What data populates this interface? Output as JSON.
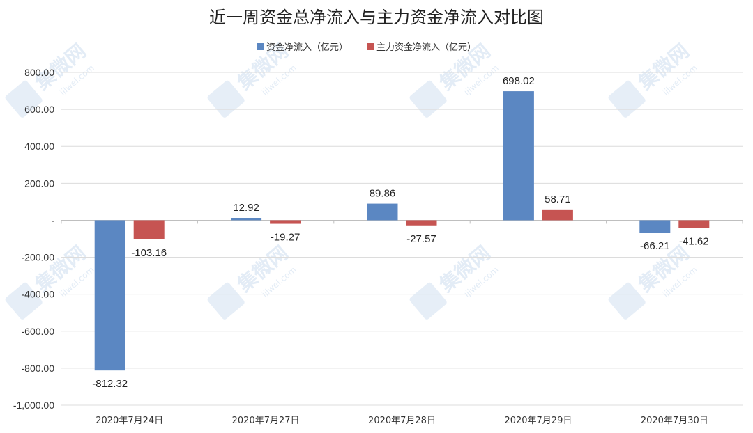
{
  "watermark": {
    "text": "集微网",
    "url": "ijiwei.com"
  },
  "chart_data": {
    "type": "bar",
    "title": "近一周资金总净流入与主力资金净流入对比图",
    "categories": [
      "2020年7月24日",
      "2020年7月27日",
      "2020年7月28日",
      "2020年7月29日",
      "2020年7月30日"
    ],
    "series": [
      {
        "name": "资金净流入（亿元）",
        "color": "#5b87c2",
        "values": [
          -812.32,
          12.92,
          89.86,
          698.02,
          -66.21
        ],
        "labels": [
          "-812.32",
          "12.92",
          "89.86",
          "698.02",
          "-66.21"
        ]
      },
      {
        "name": "主力资金净流入（亿元）",
        "color": "#c65452",
        "values": [
          -103.16,
          -19.27,
          -27.57,
          58.71,
          -41.62
        ],
        "labels": [
          "-103.16",
          "-19.27",
          "-27.57",
          "58.71",
          "-41.62"
        ]
      }
    ],
    "yticks": [
      800,
      600,
      400,
      200,
      0,
      -200,
      -400,
      -600,
      -800,
      -1000
    ],
    "ytick_labels": [
      "800.00",
      "600.00",
      "400.00",
      "200.00",
      "-",
      "-200.00",
      "-400.00",
      "-600.00",
      "-800.00",
      "-1,000.00"
    ],
    "ylim": [
      -1000,
      800
    ],
    "legend_position": "top-center",
    "grid": true
  }
}
